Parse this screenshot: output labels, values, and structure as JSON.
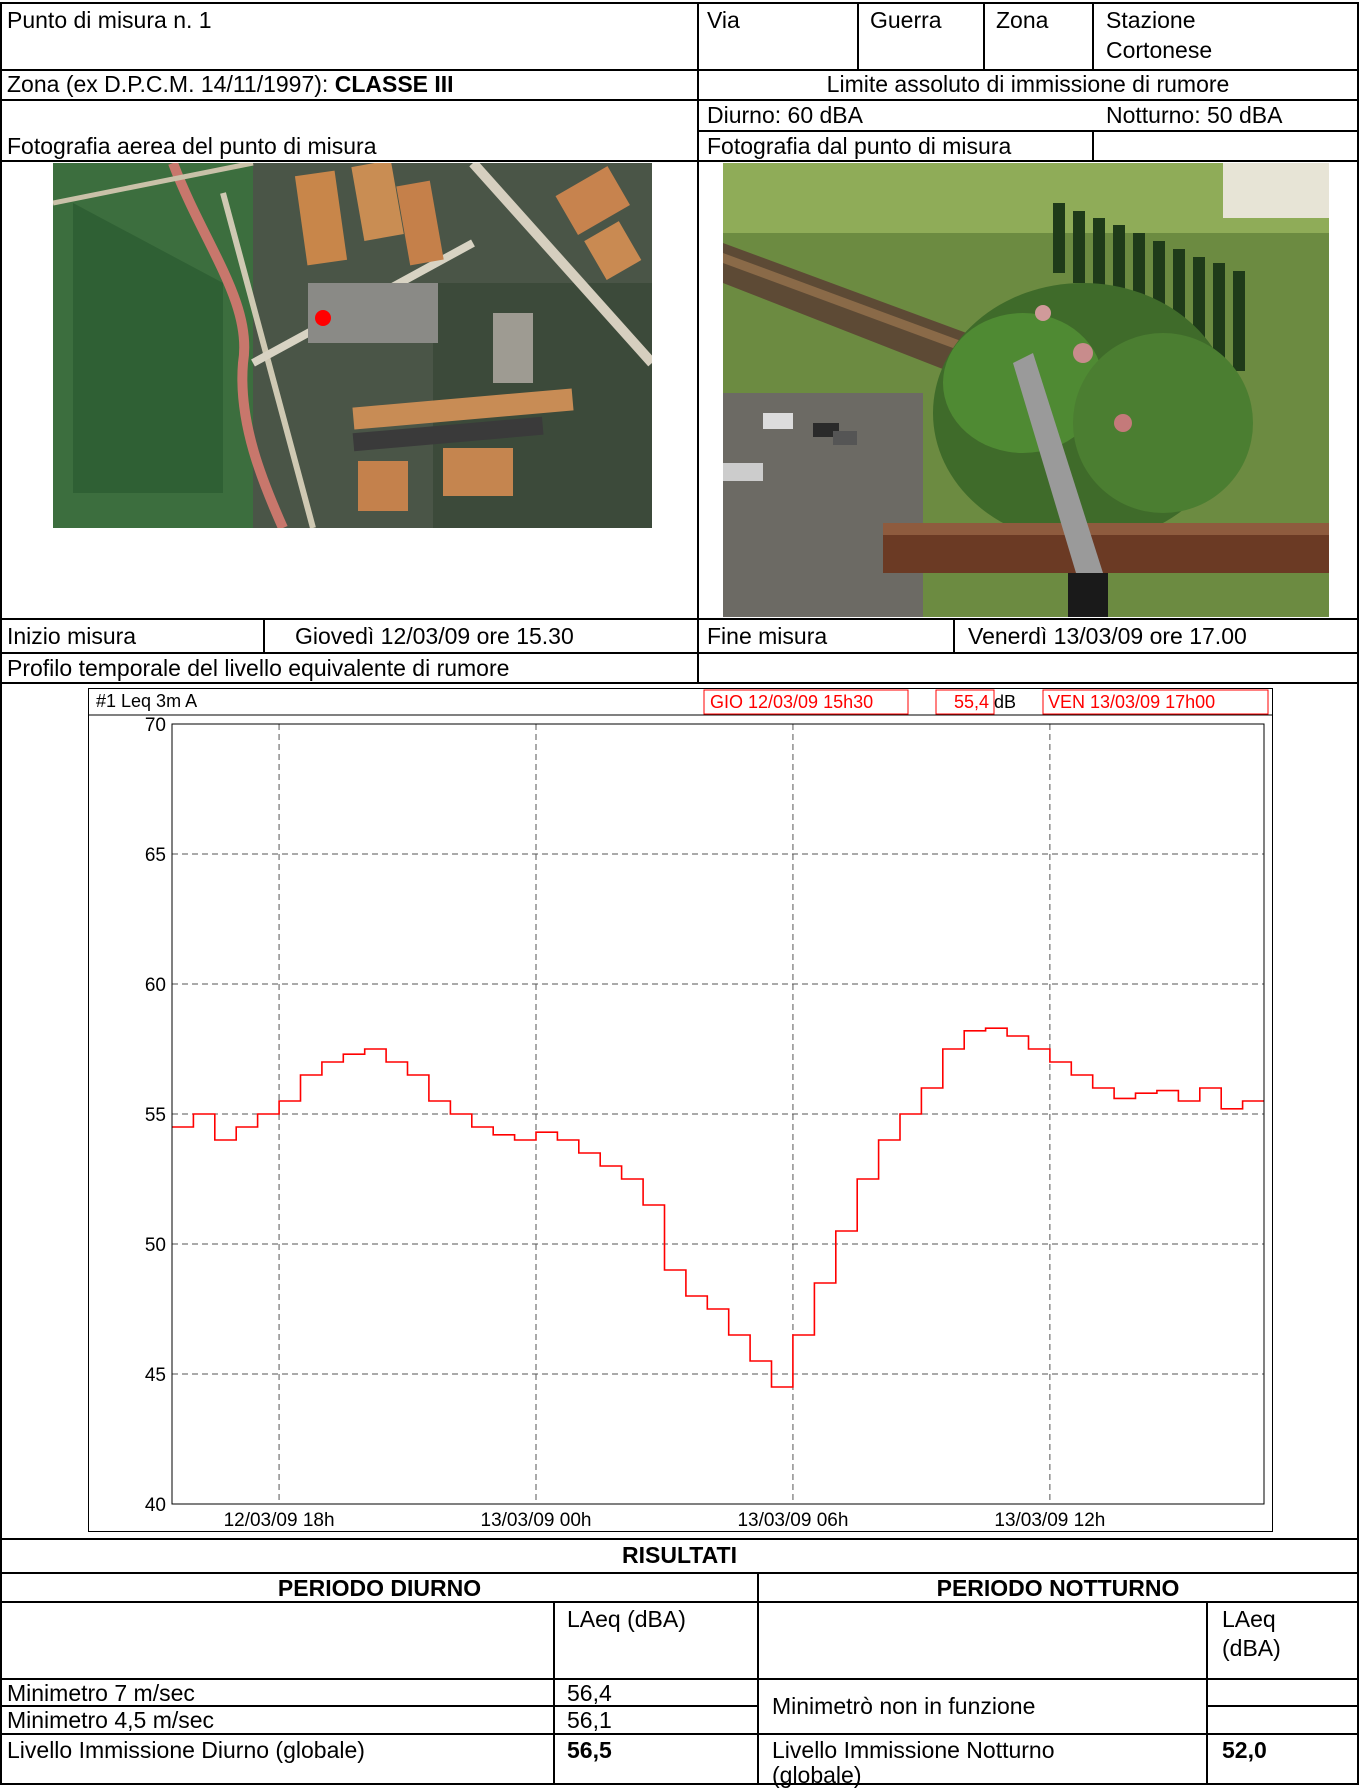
{
  "header": {
    "punto_label": "Punto di misura n. 1",
    "via_label": "Via",
    "via_value": "Guerra",
    "zona_label": "Zona",
    "zona_value_line1": "Stazione",
    "zona_value_line2": "Cortonese",
    "zona_dpcm_label": "Zona (ex D.P.C.M. 14/11/1997): ",
    "zona_dpcm_value": "CLASSE III",
    "limite_title": "Limite assoluto di immissione di rumore",
    "diurno_limit": "Diurno: 60 dBA",
    "notturno_limit": "Notturno: 50 dBA"
  },
  "photos": {
    "aerial_title": "Fotografia aerea del punto di misura",
    "ground_title": "Fotografia dal punto di misura"
  },
  "timing": {
    "start_label": "Inizio misura",
    "start_value": "Giovedì 12/03/09 ore 15.30",
    "end_label": "Fine misura",
    "end_value": "Venerdì 13/03/09 ore 17.00"
  },
  "profile_title": "Profilo temporale del livello equivalente di rumore",
  "chart_data": {
    "type": "line",
    "title": "#1  Leq 3m  A",
    "header_start": "GIO 12/03/09 15h30",
    "header_value": "55,4",
    "header_unit": "dB",
    "header_end": "VEN 13/03/09 17h00",
    "ylim": [
      40,
      70
    ],
    "yticks": [
      "70",
      "65",
      "60",
      "55",
      "50",
      "45",
      "40"
    ],
    "x_tick_labels": [
      "12/03/09 18h",
      "13/03/09 00h",
      "13/03/09 06h",
      "13/03/09 12h"
    ],
    "x_unit": "hours since 12/03/09 15h30",
    "xlim": [
      0,
      25.5
    ],
    "grid": true,
    "series": [
      {
        "color": "#ff0000",
        "x": [
          0,
          0.5,
          1,
          1.5,
          2,
          2.5,
          3,
          3.5,
          4,
          4.5,
          5,
          5.5,
          6,
          6.5,
          7,
          7.5,
          8,
          8.5,
          9,
          9.5,
          10,
          10.5,
          11,
          11.5,
          12,
          12.5,
          13,
          13.5,
          14,
          14.5,
          15,
          15.5,
          16,
          16.5,
          17,
          17.5,
          18,
          18.5,
          19,
          19.5,
          20,
          20.5,
          21,
          21.5,
          22,
          22.5,
          23,
          23.5,
          24,
          24.5,
          25,
          25.5
        ],
        "values": [
          54.5,
          55.0,
          54.0,
          54.5,
          55.0,
          55.5,
          56.5,
          57.0,
          57.3,
          57.5,
          57.0,
          56.5,
          55.5,
          55.0,
          54.5,
          54.2,
          54.0,
          54.3,
          54.0,
          53.5,
          53.0,
          52.5,
          51.5,
          49.0,
          48.0,
          47.5,
          46.5,
          45.5,
          44.5,
          46.5,
          48.5,
          50.5,
          52.5,
          54.0,
          55.0,
          56.0,
          57.5,
          58.2,
          58.3,
          58.0,
          57.5,
          57.0,
          56.5,
          56.0,
          55.6,
          55.8,
          55.9,
          55.5,
          56.0,
          55.2,
          55.5,
          55.5
        ]
      }
    ]
  },
  "results": {
    "title": "RISULTATI",
    "diurno_title": "PERIODO DIURNO",
    "notturno_title": "PERIODO NOTTURNO",
    "laeq_header": "LAeq (dBA)",
    "laeq_header_line1": "LAeq",
    "laeq_header_line2": "(dBA)",
    "row1_label": "Minimetro 7 m/sec",
    "row1_value": "56,4",
    "row2_label": "Minimetro 4,5 m/sec",
    "row2_value": "56,1",
    "notturno_minimetro": "Minimetrò non in funzione",
    "diurno_global_label": "Livello Immissione Diurno (globale)",
    "diurno_global_value": "56,5",
    "notturno_global_label_line1": "Livello Immissione Notturno",
    "notturno_global_label_line2": "(globale)",
    "notturno_global_value": "52,0"
  }
}
